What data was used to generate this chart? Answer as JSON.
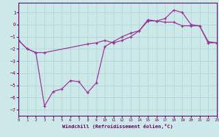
{
  "xlabel": "Windchill (Refroidissement éolien,°C)",
  "background_color": "#cce8e8",
  "line_color": "#993399",
  "grid_color": "#aad0d0",
  "xlim": [
    0,
    23
  ],
  "ylim": [
    -7.5,
    1.8
  ],
  "xticks": [
    0,
    1,
    2,
    3,
    4,
    5,
    6,
    7,
    8,
    9,
    10,
    11,
    12,
    13,
    14,
    15,
    16,
    17,
    18,
    19,
    20,
    21,
    22,
    23
  ],
  "yticks": [
    -7,
    -6,
    -5,
    -4,
    -3,
    -2,
    -1,
    0,
    1
  ],
  "line1_x": [
    0,
    1,
    2,
    3,
    4,
    5,
    6,
    7,
    8,
    9,
    10,
    11,
    12,
    13,
    14,
    15,
    16,
    17,
    18,
    19,
    20,
    21,
    22,
    23
  ],
  "line1_y": [
    -1.3,
    -2.0,
    -2.3,
    -6.7,
    -5.5,
    -5.3,
    -4.6,
    -4.7,
    -5.6,
    -4.8,
    -1.8,
    -1.4,
    -1.0,
    -0.7,
    -0.5,
    0.4,
    0.3,
    0.2,
    0.2,
    -0.1,
    -0.1,
    -0.1,
    -1.5,
    -1.5
  ],
  "line2_x": [
    0,
    1,
    2,
    3,
    8,
    9,
    10,
    11,
    12,
    13,
    14,
    15,
    16,
    17,
    18,
    19,
    20,
    21,
    22,
    23
  ],
  "line2_y": [
    -1.3,
    -2.0,
    -2.3,
    -2.3,
    -1.6,
    -1.5,
    -1.3,
    -1.5,
    -1.3,
    -1.0,
    -0.5,
    0.3,
    0.3,
    0.5,
    1.2,
    1.0,
    0.0,
    -0.1,
    -1.4,
    -1.5
  ]
}
